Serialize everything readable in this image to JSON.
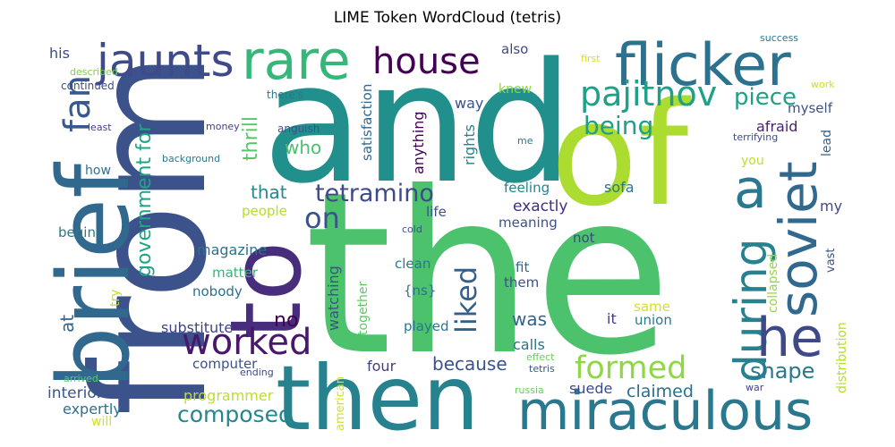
{
  "chart_data": {
    "type": "wordcloud",
    "title": "LIME Token WordCloud (tetris)",
    "words": [
      {
        "text": "the",
        "color": "#4cc26c"
      },
      {
        "text": "and",
        "color": "#21908d"
      },
      {
        "text": "from",
        "color": "#3b528b"
      },
      {
        "text": "of",
        "color": "#addc30"
      },
      {
        "text": "then",
        "color": "#26828e"
      },
      {
        "text": "to",
        "color": "#472d7b"
      },
      {
        "text": "brief",
        "color": "#31688e"
      },
      {
        "text": "flicker",
        "color": "#2c728e"
      },
      {
        "text": "miraculous",
        "color": "#2a788e"
      },
      {
        "text": "rare",
        "color": "#35b779"
      },
      {
        "text": "jaunts",
        "color": "#3e4a89"
      },
      {
        "text": "soviet",
        "color": "#31688e"
      },
      {
        "text": "house",
        "color": "#440154"
      },
      {
        "text": "during",
        "color": "#26828e"
      },
      {
        "text": "he",
        "color": "#3e4989"
      },
      {
        "text": "a",
        "color": "#2a788e"
      },
      {
        "text": "worked",
        "color": "#48186a"
      },
      {
        "text": "fan",
        "color": "#38598c"
      },
      {
        "text": "pajitnov",
        "color": "#1fa088"
      },
      {
        "text": "formed",
        "color": "#8fd744"
      },
      {
        "text": "government for",
        "color": "#20a486"
      },
      {
        "text": "liked",
        "color": "#355f8d"
      },
      {
        "text": "piece",
        "color": "#1fa187"
      },
      {
        "text": "tetramino",
        "color": "#3e4a89"
      },
      {
        "text": "being",
        "color": "#1f9e89"
      },
      {
        "text": "composed",
        "color": "#24868e"
      },
      {
        "text": "on",
        "color": "#3b528b"
      },
      {
        "text": "shape",
        "color": "#2a778e"
      },
      {
        "text": "thrill",
        "color": "#56c667"
      },
      {
        "text": "because",
        "color": "#3b528b"
      },
      {
        "text": "claimed",
        "color": "#2d708e"
      },
      {
        "text": "no",
        "color": "#440154"
      },
      {
        "text": "at",
        "color": "#31688e"
      },
      {
        "text": "that",
        "color": "#238a8d"
      },
      {
        "text": "was",
        "color": "#33638d"
      },
      {
        "text": "who",
        "color": "#4ac16d"
      },
      {
        "text": "rights",
        "color": "#26828e"
      },
      {
        "text": "anything",
        "color": "#440154"
      },
      {
        "text": "satisfaction",
        "color": "#31688e"
      },
      {
        "text": "collapsed",
        "color": "#95d840"
      },
      {
        "text": "interior",
        "color": "#39568c"
      },
      {
        "text": "watching",
        "color": "#3b528b"
      },
      {
        "text": "suede",
        "color": "#3e4a89"
      },
      {
        "text": "distribution",
        "color": "#b5de2b"
      },
      {
        "text": "exactly",
        "color": "#472d7b"
      },
      {
        "text": "afraid",
        "color": "#481f70"
      },
      {
        "text": "sofa",
        "color": "#2a788e"
      },
      {
        "text": "myself",
        "color": "#3b528b"
      },
      {
        "text": "feeling",
        "color": "#26828e"
      },
      {
        "text": "magazine",
        "color": "#2d708e"
      },
      {
        "text": "people",
        "color": "#b5de2b"
      },
      {
        "text": "substitute",
        "color": "#414487"
      },
      {
        "text": "computer",
        "color": "#3b528b"
      },
      {
        "text": "programmer",
        "color": "#bddf26"
      },
      {
        "text": "expertly",
        "color": "#2d708e"
      },
      {
        "text": "life",
        "color": "#3b528b"
      },
      {
        "text": "meaning",
        "color": "#3b528b"
      },
      {
        "text": "played",
        "color": "#2a788e"
      },
      {
        "text": "matter",
        "color": "#35b779"
      },
      {
        "text": "nobody",
        "color": "#2d708e"
      },
      {
        "text": "together",
        "color": "#5ec962"
      },
      {
        "text": "calls",
        "color": "#2c728e"
      },
      {
        "text": "four",
        "color": "#433e85"
      },
      {
        "text": "clean",
        "color": "#2a788e"
      },
      {
        "text": "them",
        "color": "#3b528b"
      },
      {
        "text": "fit",
        "color": "#31688e"
      },
      {
        "text": "same",
        "color": "#d8e219"
      },
      {
        "text": "union",
        "color": "#2a788e"
      },
      {
        "text": "it",
        "color": "#433e85"
      },
      {
        "text": "{ns}",
        "color": "#2c728e"
      },
      {
        "text": "lead",
        "color": "#355f8d"
      },
      {
        "text": "vast",
        "color": "#39568c"
      },
      {
        "text": "my",
        "color": "#3e4a89"
      },
      {
        "text": "you",
        "color": "#bddf26"
      },
      {
        "text": "begin",
        "color": "#2a778e"
      },
      {
        "text": "try",
        "color": "#c2df23"
      },
      {
        "text": "not",
        "color": "#3e4989"
      },
      {
        "text": "way",
        "color": "#3b528b"
      },
      {
        "text": "knew",
        "color": "#8fd744"
      },
      {
        "text": "also",
        "color": "#3e4a89"
      },
      {
        "text": "his",
        "color": "#3e4a89"
      },
      {
        "text": "how",
        "color": "#2d708e"
      },
      {
        "text": "will",
        "color": "#d0e11c"
      },
      {
        "text": "american",
        "color": "#d2e21b"
      },
      {
        "text": "success",
        "color": "#2a788e"
      },
      {
        "text": "first",
        "color": "#d8e219"
      },
      {
        "text": "work",
        "color": "#d0e11c"
      },
      {
        "text": "described",
        "color": "#7ad151"
      },
      {
        "text": "there's",
        "color": "#2a788e"
      },
      {
        "text": "continued",
        "color": "#3e4a89"
      },
      {
        "text": "anguish",
        "color": "#3b528b"
      },
      {
        "text": "least",
        "color": "#433e85"
      },
      {
        "text": "money",
        "color": "#433e85"
      },
      {
        "text": "me",
        "color": "#2a788e"
      },
      {
        "text": "terrifying",
        "color": "#3e4a89"
      },
      {
        "text": "background",
        "color": "#2a788e"
      },
      {
        "text": "cold",
        "color": "#3b528b"
      },
      {
        "text": "ending",
        "color": "#3e4a89"
      },
      {
        "text": "arrived",
        "color": "#5ec962"
      },
      {
        "text": "effect",
        "color": "#6ccd5a"
      },
      {
        "text": "tetris",
        "color": "#39568c"
      },
      {
        "text": "russia",
        "color": "#6ccd5a"
      },
      {
        "text": "war",
        "color": "#433e85"
      }
    ]
  }
}
